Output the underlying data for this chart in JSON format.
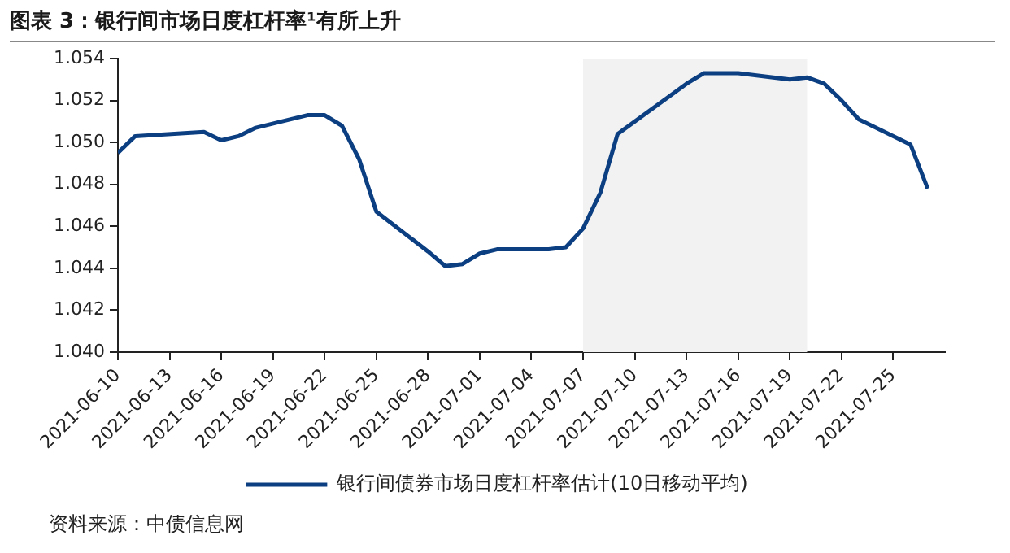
{
  "chart_data": {
    "type": "line",
    "title": "图表 3：银行间市场日度杠杆率¹有所上升",
    "x": [
      "2021-06-10",
      "2021-06-11",
      "2021-06-15",
      "2021-06-16",
      "2021-06-17",
      "2021-06-18",
      "2021-06-21",
      "2021-06-22",
      "2021-06-23",
      "2021-06-24",
      "2021-06-25",
      "2021-06-28",
      "2021-06-29",
      "2021-06-30",
      "2021-07-01",
      "2021-07-02",
      "2021-07-05",
      "2021-07-06",
      "2021-07-07",
      "2021-07-08",
      "2021-07-09",
      "2021-07-12",
      "2021-07-13",
      "2021-07-14",
      "2021-07-15",
      "2021-07-16",
      "2021-07-19",
      "2021-07-20",
      "2021-07-21",
      "2021-07-22",
      "2021-07-23",
      "2021-07-26",
      "2021-07-27"
    ],
    "series": [
      {
        "name": "银行间债券市场日度杠杆率估计(10日移动平均)",
        "color": "#0b3f82",
        "values": [
          1.0495,
          1.0503,
          1.0505,
          1.0501,
          1.0503,
          1.0507,
          1.0513,
          1.0513,
          1.0508,
          1.0492,
          1.0467,
          1.0448,
          1.0441,
          1.0442,
          1.0447,
          1.0449,
          1.0449,
          1.045,
          1.0459,
          1.0476,
          1.0504,
          1.0522,
          1.0528,
          1.0533,
          1.0533,
          1.0533,
          1.053,
          1.0531,
          1.0528,
          1.052,
          1.0511,
          1.0499,
          1.0478
        ]
      }
    ],
    "xlim": [
      "2021-06-10",
      "2021-07-28"
    ],
    "xticks": [
      "2021-06-10",
      "2021-06-13",
      "2021-06-16",
      "2021-06-19",
      "2021-06-22",
      "2021-06-25",
      "2021-06-28",
      "2021-07-01",
      "2021-07-04",
      "2021-07-07",
      "2021-07-10",
      "2021-07-13",
      "2021-07-16",
      "2021-07-19",
      "2021-07-22",
      "2021-07-25"
    ],
    "ylim": [
      1.04,
      1.054
    ],
    "yticks": [
      {
        "value": 1.04,
        "label": "1.040"
      },
      {
        "value": 1.042,
        "label": "1.042"
      },
      {
        "value": 1.044,
        "label": "1.044"
      },
      {
        "value": 1.046,
        "label": "1.046"
      },
      {
        "value": 1.048,
        "label": "1.048"
      },
      {
        "value": 1.05,
        "label": "1.050"
      },
      {
        "value": 1.052,
        "label": "1.052"
      },
      {
        "value": 1.054,
        "label": "1.054"
      }
    ],
    "bands": [
      {
        "axis": "x",
        "from": "2021-07-07",
        "to": "2021-07-20",
        "color": "#f2f2f2"
      }
    ],
    "grid": false,
    "legend": "bottom",
    "marker": "none",
    "line_style": "solid",
    "annotations": [
      "资料来源：中债信息网"
    ]
  }
}
